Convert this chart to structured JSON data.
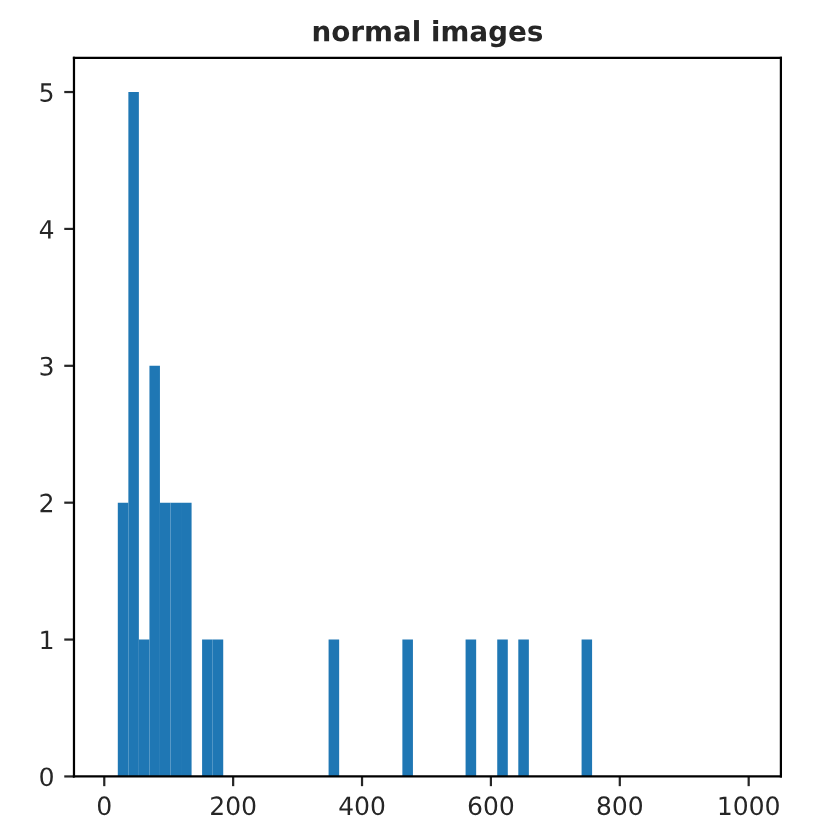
{
  "chart_data": {
    "type": "histogram",
    "title": "normal images",
    "color": "#1f77b4",
    "bins": [
      21.0,
      37.4,
      53.7,
      70.1,
      86.4,
      102.8,
      119.1,
      135.5,
      151.8,
      168.2,
      184.6,
      200.9,
      217.3,
      233.6,
      250.0,
      266.3,
      282.7,
      299.1,
      315.4,
      331.8,
      348.1,
      364.5,
      380.8,
      397.2,
      413.5,
      429.9,
      446.3,
      462.6,
      479.0,
      495.3,
      511.7,
      528.0,
      544.4,
      560.7,
      577.1,
      593.5,
      609.8,
      626.2,
      642.5,
      658.9,
      675.2,
      691.6,
      708.0,
      724.3,
      740.7,
      757.0
    ],
    "values": [
      2,
      5,
      1,
      3,
      2,
      2,
      2,
      0,
      1,
      1,
      0,
      0,
      0,
      0,
      0,
      0,
      0,
      0,
      0,
      0,
      1,
      0,
      0,
      0,
      0,
      0,
      0,
      1,
      0,
      0,
      0,
      0,
      0,
      1,
      0,
      0,
      1,
      0,
      1,
      0,
      0,
      0,
      0,
      0,
      1
    ],
    "xlim": [
      -47,
      1050
    ],
    "ylim": [
      0,
      5.25
    ],
    "xticks": [
      0,
      200,
      400,
      600,
      800,
      1000
    ],
    "yticks": [
      0,
      1,
      2,
      3,
      4,
      5
    ],
    "grid": false
  }
}
